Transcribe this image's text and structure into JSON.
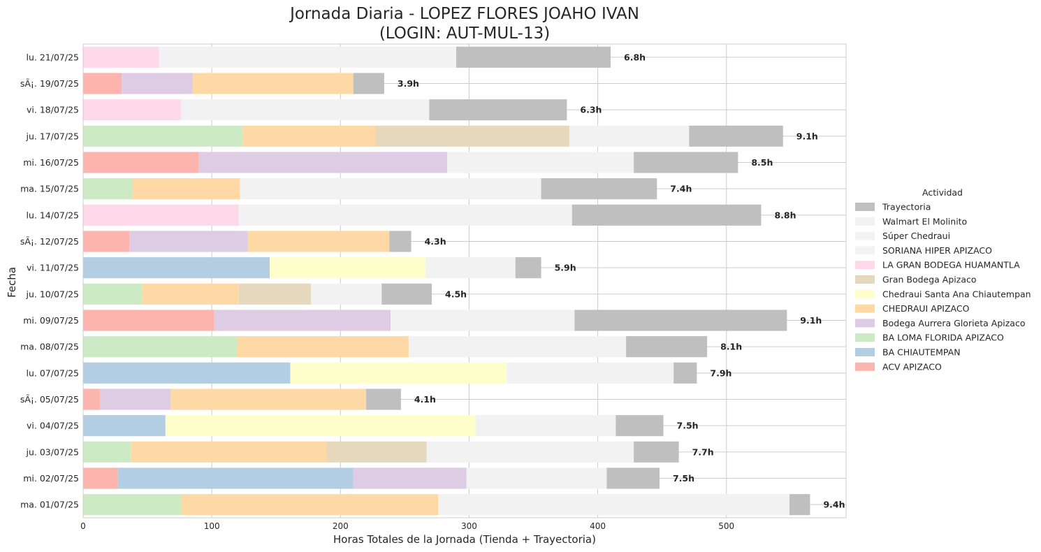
{
  "chart_data": {
    "type": "bar",
    "orientation": "horizontal",
    "stacked": true,
    "title": "Jornada Diaria - LOPEZ FLORES JOAHO IVAN",
    "subtitle": "(LOGIN: AUT-MUL-13)",
    "xlabel": "Horas Totales de la Jornada (Tienda + Trayectoria)",
    "ylabel": "Fecha",
    "xlim": [
      0,
      593
    ],
    "xticks": [
      0,
      100,
      200,
      300,
      400,
      500
    ],
    "grid": true,
    "legend": {
      "title": "Actividad",
      "placement": "center-right",
      "entries": [
        "Trayectoria",
        "Walmart El Molinito",
        "Súper Chedraui",
        "SORIANA HIPER APIZACO",
        "LA GRAN BODEGA HUAMANTLA",
        "Gran Bodega Apizaco",
        "Chedraui Santa Ana Chiautempan",
        "CHEDRAUI APIZACO",
        "Bodega Aurrera Glorieta Apizaco",
        "BA LOMA FLORIDA APIZACO",
        "BA CHIAUTEMPAN",
        "ACV APIZACO"
      ]
    },
    "colors": {
      "Trayectoria": "#bfbfbf",
      "Walmart El Molinito": "#f2f2f2",
      "Súper Chedraui": "#f2f2f2",
      "SORIANA HIPER APIZACO": "#f2f2f2",
      "LA GRAN BODEGA HUAMANTLA": "#fdd9ea",
      "Gran Bodega Apizaco": "#e5d8bd",
      "Chedraui Santa Ana Chiautempan": "#ffffcc",
      "CHEDRAUI APIZACO": "#fed9a6",
      "Bodega Aurrera Glorieta Apizaco": "#decbe4",
      "BA LOMA FLORIDA APIZACO": "#ccebc5",
      "BA CHIAUTEMPAN": "#b3cde3",
      "ACV APIZACO": "#fbb4ae"
    },
    "rows": [
      {
        "date": "lu. 21/07/25",
        "total_label": "6.8h",
        "segments": [
          {
            "activity": "LA GRAN BODEGA HUAMANTLA",
            "value": 59
          },
          {
            "activity": "SORIANA HIPER APIZACO",
            "value": 231
          },
          {
            "activity": "Trayectoria",
            "value": 120
          }
        ]
      },
      {
        "date": "sÃ¡. 19/07/25",
        "total_label": "3.9h",
        "segments": [
          {
            "activity": "ACV APIZACO",
            "value": 30
          },
          {
            "activity": "Bodega Aurrera Glorieta Apizaco",
            "value": 55
          },
          {
            "activity": "CHEDRAUI APIZACO",
            "value": 125
          },
          {
            "activity": "Trayectoria",
            "value": 24
          }
        ]
      },
      {
        "date": "vi. 18/07/25",
        "total_label": "6.3h",
        "segments": [
          {
            "activity": "LA GRAN BODEGA HUAMANTLA",
            "value": 76
          },
          {
            "activity": "SORIANA HIPER APIZACO",
            "value": 193
          },
          {
            "activity": "Trayectoria",
            "value": 107
          }
        ]
      },
      {
        "date": "ju. 17/07/25",
        "total_label": "9.1h",
        "segments": [
          {
            "activity": "BA LOMA FLORIDA APIZACO",
            "value": 124
          },
          {
            "activity": "CHEDRAUI APIZACO",
            "value": 103
          },
          {
            "activity": "Gran Bodega Apizaco",
            "value": 151
          },
          {
            "activity": "SORIANA HIPER APIZACO",
            "value": 93
          },
          {
            "activity": "Trayectoria",
            "value": 73
          }
        ]
      },
      {
        "date": "mi. 16/07/25",
        "total_label": "8.5h",
        "segments": [
          {
            "activity": "ACV APIZACO",
            "value": 90
          },
          {
            "activity": "Bodega Aurrera Glorieta Apizaco",
            "value": 193
          },
          {
            "activity": "SORIANA HIPER APIZACO",
            "value": 145
          },
          {
            "activity": "Trayectoria",
            "value": 81
          }
        ]
      },
      {
        "date": "ma. 15/07/25",
        "total_label": "7.4h",
        "segments": [
          {
            "activity": "BA LOMA FLORIDA APIZACO",
            "value": 38
          },
          {
            "activity": "CHEDRAUI APIZACO",
            "value": 84
          },
          {
            "activity": "SORIANA HIPER APIZACO",
            "value": 234
          },
          {
            "activity": "Trayectoria",
            "value": 90
          }
        ]
      },
      {
        "date": "lu. 14/07/25",
        "total_label": "8.8h",
        "segments": [
          {
            "activity": "LA GRAN BODEGA HUAMANTLA",
            "value": 121
          },
          {
            "activity": "SORIANA HIPER APIZACO",
            "value": 259
          },
          {
            "activity": "Trayectoria",
            "value": 147
          }
        ]
      },
      {
        "date": "sÃ¡. 12/07/25",
        "total_label": "4.3h",
        "segments": [
          {
            "activity": "ACV APIZACO",
            "value": 36
          },
          {
            "activity": "Bodega Aurrera Glorieta Apizaco",
            "value": 92
          },
          {
            "activity": "CHEDRAUI APIZACO",
            "value": 110
          },
          {
            "activity": "Trayectoria",
            "value": 17
          }
        ]
      },
      {
        "date": "vi. 11/07/25",
        "total_label": "5.9h",
        "segments": [
          {
            "activity": "BA CHIAUTEMPAN",
            "value": 145
          },
          {
            "activity": "Chedraui Santa Ana Chiautempan",
            "value": 121
          },
          {
            "activity": "Súper Chedraui",
            "value": 70
          },
          {
            "activity": "Trayectoria",
            "value": 20
          }
        ]
      },
      {
        "date": "ju. 10/07/25",
        "total_label": "4.5h",
        "segments": [
          {
            "activity": "BA LOMA FLORIDA APIZACO",
            "value": 46
          },
          {
            "activity": "CHEDRAUI APIZACO",
            "value": 75
          },
          {
            "activity": "Gran Bodega Apizaco",
            "value": 56
          },
          {
            "activity": "SORIANA HIPER APIZACO",
            "value": 55
          },
          {
            "activity": "Trayectoria",
            "value": 39
          }
        ]
      },
      {
        "date": "mi. 09/07/25",
        "total_label": "9.1h",
        "segments": [
          {
            "activity": "ACV APIZACO",
            "value": 102
          },
          {
            "activity": "Bodega Aurrera Glorieta Apizaco",
            "value": 137
          },
          {
            "activity": "SORIANA HIPER APIZACO",
            "value": 143
          },
          {
            "activity": "Trayectoria",
            "value": 165
          }
        ]
      },
      {
        "date": "ma. 08/07/25",
        "total_label": "8.1h",
        "segments": [
          {
            "activity": "BA LOMA FLORIDA APIZACO",
            "value": 120
          },
          {
            "activity": "CHEDRAUI APIZACO",
            "value": 133
          },
          {
            "activity": "SORIANA HIPER APIZACO",
            "value": 169
          },
          {
            "activity": "Trayectoria",
            "value": 63
          }
        ]
      },
      {
        "date": "lu. 07/07/25",
        "total_label": "7.9h",
        "segments": [
          {
            "activity": "BA CHIAUTEMPAN",
            "value": 161
          },
          {
            "activity": "Chedraui Santa Ana Chiautempan",
            "value": 168
          },
          {
            "activity": "Súper Chedraui",
            "value": 130
          },
          {
            "activity": "Trayectoria",
            "value": 18
          }
        ]
      },
      {
        "date": "sÃ¡. 05/07/25",
        "total_label": "4.1h",
        "segments": [
          {
            "activity": "ACV APIZACO",
            "value": 13
          },
          {
            "activity": "Bodega Aurrera Glorieta Apizaco",
            "value": 55
          },
          {
            "activity": "CHEDRAUI APIZACO",
            "value": 152
          },
          {
            "activity": "Trayectoria",
            "value": 27
          }
        ]
      },
      {
        "date": "vi. 04/07/25",
        "total_label": "7.5h",
        "segments": [
          {
            "activity": "BA CHIAUTEMPAN",
            "value": 64
          },
          {
            "activity": "Chedraui Santa Ana Chiautempan",
            "value": 241
          },
          {
            "activity": "Súper Chedraui",
            "value": 109
          },
          {
            "activity": "Trayectoria",
            "value": 37
          }
        ]
      },
      {
        "date": "ju. 03/07/25",
        "total_label": "7.7h",
        "segments": [
          {
            "activity": "BA LOMA FLORIDA APIZACO",
            "value": 37
          },
          {
            "activity": "CHEDRAUI APIZACO",
            "value": 152
          },
          {
            "activity": "Gran Bodega Apizaco",
            "value": 78
          },
          {
            "activity": "SORIANA HIPER APIZACO",
            "value": 161
          },
          {
            "activity": "Trayectoria",
            "value": 35
          }
        ]
      },
      {
        "date": "mi. 02/07/25",
        "total_label": "7.5h",
        "segments": [
          {
            "activity": "ACV APIZACO",
            "value": 27
          },
          {
            "activity": "BA CHIAUTEMPAN",
            "value": 183
          },
          {
            "activity": "Bodega Aurrera Glorieta Apizaco",
            "value": 88
          },
          {
            "activity": "Walmart El Molinito",
            "value": 109
          },
          {
            "activity": "Trayectoria",
            "value": 41
          }
        ]
      },
      {
        "date": "ma. 01/07/25",
        "total_label": "9.4h",
        "segments": [
          {
            "activity": "BA LOMA FLORIDA APIZACO",
            "value": 76
          },
          {
            "activity": "CHEDRAUI APIZACO",
            "value": 200
          },
          {
            "activity": "SORIANA HIPER APIZACO",
            "value": 273
          },
          {
            "activity": "Trayectoria",
            "value": 16
          }
        ]
      }
    ]
  }
}
